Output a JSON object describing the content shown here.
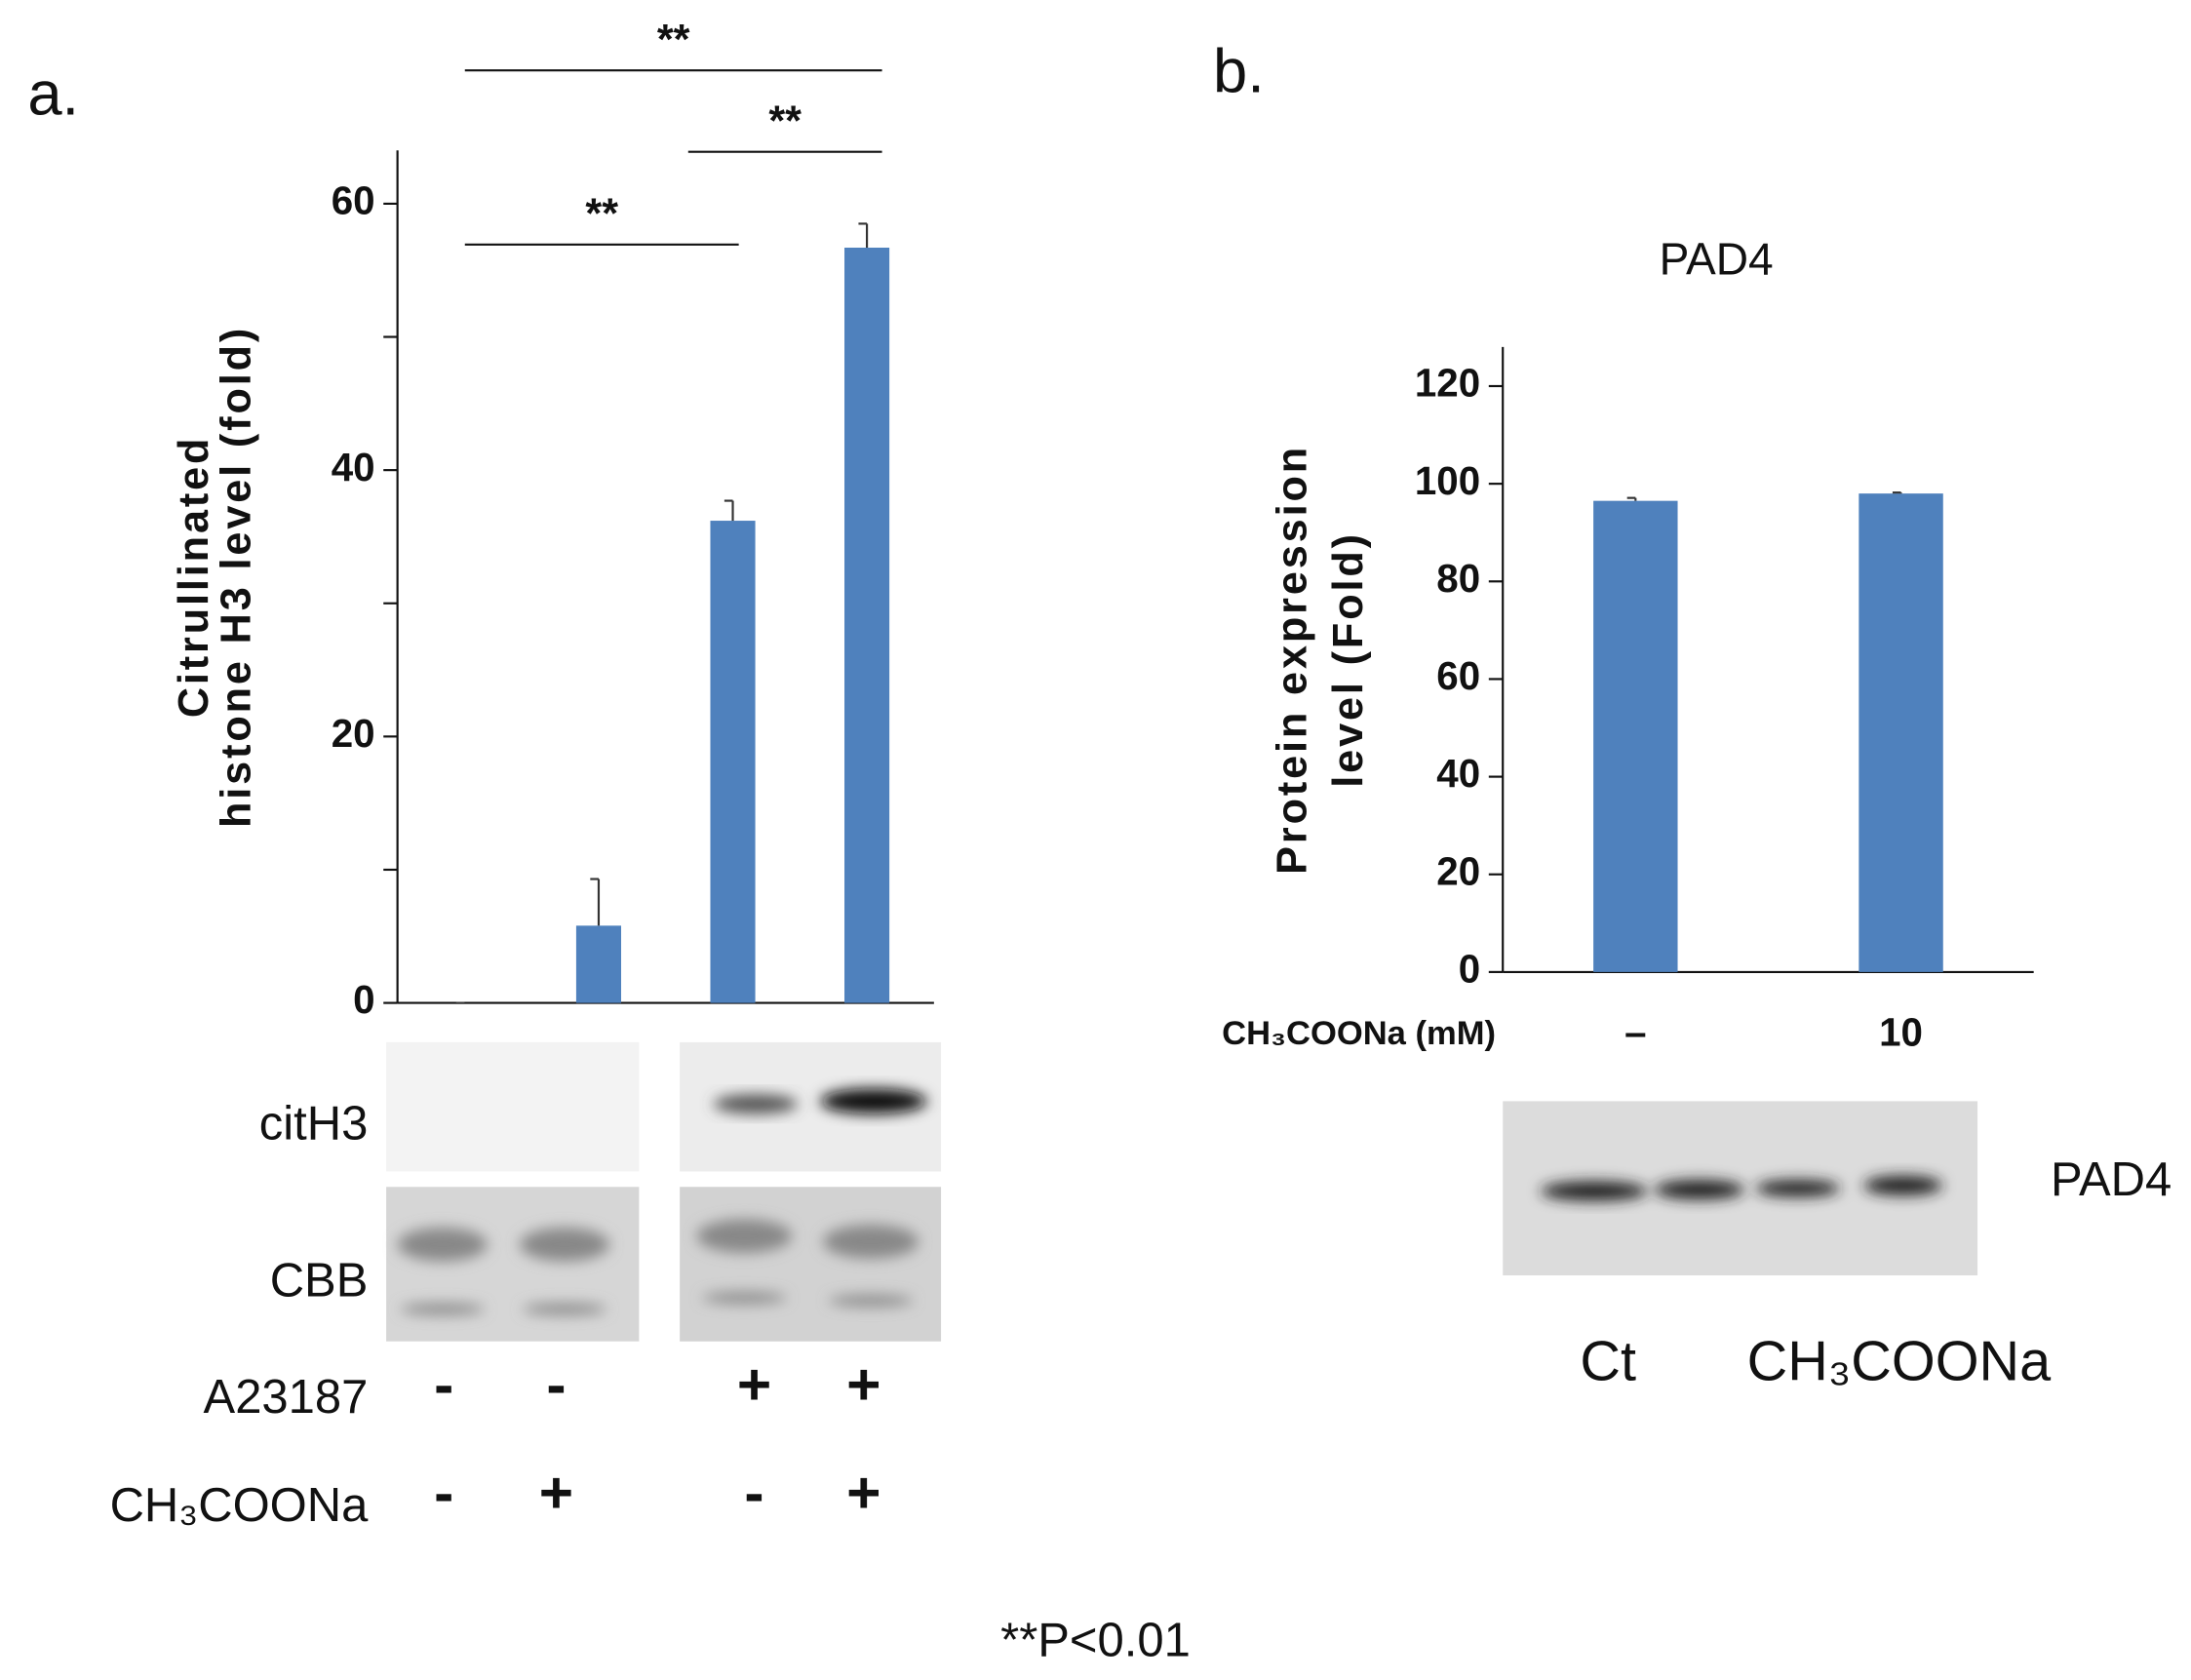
{
  "chart_data": [
    {
      "type": "bar",
      "panel_label": "a.",
      "ylabel": [
        "Citrullinated",
        "histone H3 level (fold)"
      ],
      "categories": [
        null,
        null,
        null,
        null
      ],
      "values": [
        0,
        5.8,
        36.2,
        56.7
      ],
      "errors": [
        0,
        3.5,
        1.5,
        1.8
      ],
      "color": "#4f81bd",
      "ylim": [
        0,
        64
      ],
      "yticks": [
        0,
        20,
        40,
        60
      ],
      "yminorticks": [
        10,
        30,
        50
      ],
      "annotations": [
        "**",
        "**",
        "**"
      ],
      "blot_labels": [
        "citH3",
        "CBB"
      ],
      "treatments": [
        {
          "label": "A23187",
          "signs": [
            "-",
            "-",
            "+",
            "+"
          ]
        },
        {
          "label": "CH₃COONa",
          "signs": [
            "-",
            "+",
            "-",
            "+"
          ]
        }
      ]
    },
    {
      "type": "bar",
      "panel_label": "b.",
      "title": "PAD4",
      "ylabel": [
        "Protein expression",
        "level (Fold)"
      ],
      "xlabel": "CH₃COONa (mM)",
      "categories": [
        "–",
        "10"
      ],
      "values": [
        96.5,
        98
      ],
      "errors": [
        0.6,
        0.2
      ],
      "color": "#4f81bd",
      "ylim": [
        0,
        128
      ],
      "yticks": [
        0,
        20,
        40,
        60,
        80,
        100,
        120
      ],
      "blot_labels": [
        "PAD4"
      ],
      "lane_labels": [
        "Ct",
        "CH₃COONa"
      ]
    }
  ],
  "footnote": "**P<0.01"
}
